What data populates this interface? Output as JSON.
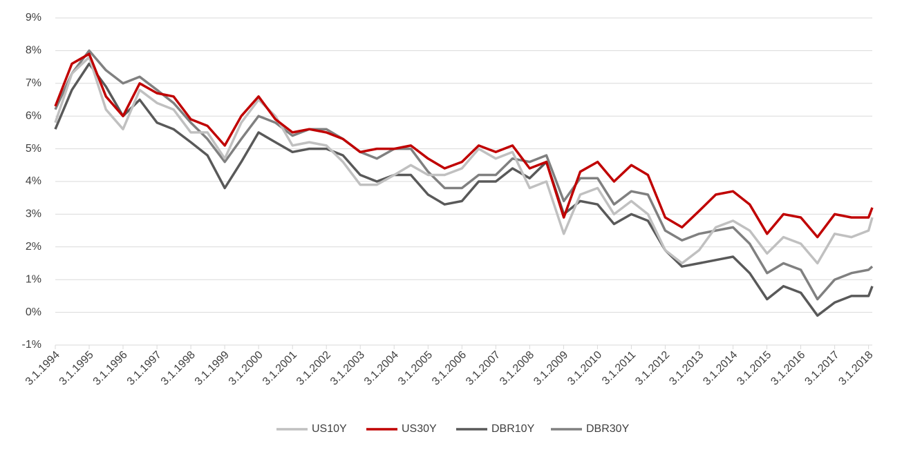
{
  "chart_data": {
    "type": "line",
    "x": [
      "1994-01-03",
      "1994-07-01",
      "1995-01-03",
      "1995-07-03",
      "1996-01-03",
      "1996-07-01",
      "1997-01-03",
      "1997-07-01",
      "1998-01-03",
      "1998-07-01",
      "1999-01-04",
      "1999-07-01",
      "2000-01-03",
      "2000-07-03",
      "2001-01-03",
      "2001-07-02",
      "2002-01-03",
      "2002-07-01",
      "2003-01-03",
      "2003-07-01",
      "2004-01-05",
      "2004-07-01",
      "2005-01-03",
      "2005-07-01",
      "2006-01-03",
      "2006-07-03",
      "2007-01-03",
      "2007-07-02",
      "2008-01-03",
      "2008-07-01",
      "2009-01-05",
      "2009-07-01",
      "2010-01-04",
      "2010-07-01",
      "2011-01-03",
      "2011-07-01",
      "2012-01-03",
      "2012-07-02",
      "2013-01-03",
      "2013-07-01",
      "2014-01-03",
      "2014-07-01",
      "2015-01-05",
      "2015-07-01",
      "2016-01-04",
      "2016-07-01",
      "2017-01-03",
      "2017-07-03",
      "2018-01-03",
      "2018-02-12"
    ],
    "series": [
      {
        "name": "US10Y",
        "color": "#c0c0c0",
        "values": [
          5.8,
          7.3,
          7.8,
          6.2,
          5.6,
          6.8,
          6.4,
          6.2,
          5.5,
          5.5,
          4.7,
          5.8,
          6.5,
          6.0,
          5.1,
          5.2,
          5.1,
          4.6,
          3.9,
          3.9,
          4.2,
          4.5,
          4.2,
          4.2,
          4.4,
          5.0,
          4.7,
          4.9,
          3.8,
          4.0,
          2.4,
          3.6,
          3.8,
          3.0,
          3.4,
          3.0,
          1.9,
          1.5,
          1.9,
          2.6,
          2.8,
          2.5,
          1.8,
          2.3,
          2.1,
          1.5,
          2.4,
          2.3,
          2.5,
          2.9
        ]
      },
      {
        "name": "US30Y",
        "color": "#c00000",
        "values": [
          6.3,
          7.6,
          7.9,
          6.6,
          6.0,
          7.0,
          6.7,
          6.6,
          5.9,
          5.7,
          5.1,
          6.0,
          6.6,
          5.9,
          5.5,
          5.6,
          5.5,
          5.3,
          4.9,
          5.0,
          5.0,
          5.1,
          4.7,
          4.4,
          4.6,
          5.1,
          4.9,
          5.1,
          4.4,
          4.6,
          2.9,
          4.3,
          4.6,
          4.0,
          4.5,
          4.2,
          2.9,
          2.6,
          3.1,
          3.6,
          3.7,
          3.3,
          2.4,
          3.0,
          2.9,
          2.3,
          3.0,
          2.9,
          2.9,
          3.2
        ]
      },
      {
        "name": "DBR10Y",
        "color": "#595959",
        "values": [
          5.6,
          6.8,
          7.6,
          6.9,
          6.0,
          6.5,
          5.8,
          5.6,
          5.2,
          4.8,
          3.8,
          4.6,
          5.5,
          5.2,
          4.9,
          5.0,
          5.0,
          4.8,
          4.2,
          4.0,
          4.2,
          4.2,
          3.6,
          3.3,
          3.4,
          4.0,
          4.0,
          4.4,
          4.1,
          4.6,
          3.0,
          3.4,
          3.3,
          2.7,
          3.0,
          2.8,
          1.9,
          1.4,
          1.5,
          1.6,
          1.7,
          1.2,
          0.4,
          0.8,
          0.6,
          -0.1,
          0.3,
          0.5,
          0.5,
          0.8
        ]
      },
      {
        "name": "DBR30Y",
        "color": "#808080",
        "values": [
          6.2,
          7.3,
          8.0,
          7.4,
          7.0,
          7.2,
          6.8,
          6.4,
          5.8,
          5.3,
          4.6,
          5.3,
          6.0,
          5.8,
          5.4,
          5.6,
          5.6,
          5.3,
          4.9,
          4.7,
          5.0,
          5.0,
          4.3,
          3.8,
          3.8,
          4.2,
          4.2,
          4.7,
          4.6,
          4.8,
          3.4,
          4.1,
          4.1,
          3.3,
          3.7,
          3.6,
          2.5,
          2.2,
          2.4,
          2.5,
          2.6,
          2.1,
          1.2,
          1.5,
          1.3,
          0.4,
          1.0,
          1.2,
          1.3,
          1.4
        ]
      }
    ],
    "xlim": [
      "1994-01-03",
      "2018-02-12"
    ],
    "xticks": [
      {
        "value": "1994-01-03",
        "label": "3.1.1994"
      },
      {
        "value": "1995-01-03",
        "label": "3.1.1995"
      },
      {
        "value": "1996-01-03",
        "label": "3.1.1996"
      },
      {
        "value": "1997-01-03",
        "label": "3.1.1997"
      },
      {
        "value": "1998-01-03",
        "label": "3.1.1998"
      },
      {
        "value": "1999-01-03",
        "label": "3.1.1999"
      },
      {
        "value": "2000-01-03",
        "label": "3.1.2000"
      },
      {
        "value": "2001-01-03",
        "label": "3.1.2001"
      },
      {
        "value": "2002-01-03",
        "label": "3.1.2002"
      },
      {
        "value": "2003-01-03",
        "label": "3.1.2003"
      },
      {
        "value": "2004-01-03",
        "label": "3.1.2004"
      },
      {
        "value": "2005-01-03",
        "label": "3.1.2005"
      },
      {
        "value": "2006-01-03",
        "label": "3.1.2006"
      },
      {
        "value": "2007-01-03",
        "label": "3.1.2007"
      },
      {
        "value": "2008-01-03",
        "label": "3.1.2008"
      },
      {
        "value": "2009-01-03",
        "label": "3.1.2009"
      },
      {
        "value": "2010-01-03",
        "label": "3.1.2010"
      },
      {
        "value": "2011-01-03",
        "label": "3.1.2011"
      },
      {
        "value": "2012-01-03",
        "label": "3.1.2012"
      },
      {
        "value": "2013-01-03",
        "label": "3.1.2013"
      },
      {
        "value": "2014-01-03",
        "label": "3.1.2014"
      },
      {
        "value": "2015-01-03",
        "label": "3.1.2015"
      },
      {
        "value": "2016-01-03",
        "label": "3.1.2016"
      },
      {
        "value": "2017-01-03",
        "label": "3.1.2017"
      },
      {
        "value": "2018-01-03",
        "label": "3.1.2018"
      }
    ],
    "ylim": [
      -1,
      9
    ],
    "yticks": [
      {
        "value": -1,
        "label": "-1%"
      },
      {
        "value": 0,
        "label": "0%"
      },
      {
        "value": 1,
        "label": "1%"
      },
      {
        "value": 2,
        "label": "2%"
      },
      {
        "value": 3,
        "label": "3%"
      },
      {
        "value": 4,
        "label": "4%"
      },
      {
        "value": 5,
        "label": "5%"
      },
      {
        "value": 6,
        "label": "6%"
      },
      {
        "value": 7,
        "label": "7%"
      },
      {
        "value": 8,
        "label": "8%"
      },
      {
        "value": 9,
        "label": "9%"
      }
    ],
    "grid": true,
    "legend": "bottom"
  }
}
